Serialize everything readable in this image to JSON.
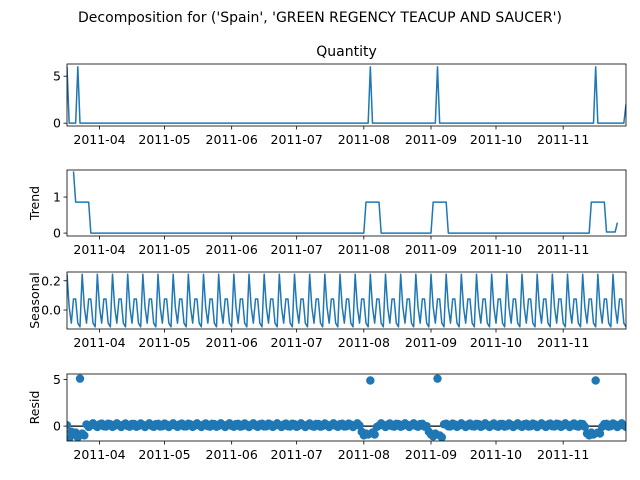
{
  "suptitle": "Decomposition for ('Spain', 'GREEN REGENCY TEACUP AND SAUCER')",
  "x_tick_labels": [
    "2011-04",
    "2011-05",
    "2011-06",
    "2011-07",
    "2011-08",
    "2011-09",
    "2011-10",
    "2011-11"
  ],
  "colors": {
    "series": "#1f77b4"
  },
  "chart_data": [
    {
      "type": "line",
      "title": "Quantity",
      "ylabel": "",
      "x_range": [
        "2011-03-17",
        "2011-11-30"
      ],
      "ylim": [
        -0.3,
        6.3
      ],
      "yticks": [
        0,
        5
      ],
      "series": [
        {
          "x": [
            "2011-03-17",
            "2011-03-18",
            "2011-03-21",
            "2011-03-22",
            "2011-03-23",
            "2011-03-24",
            "2011-08-02",
            "2011-08-03",
            "2011-08-04",
            "2011-08-05",
            "2011-09-02",
            "2011-09-03",
            "2011-09-04",
            "2011-09-05",
            "2011-11-14",
            "2011-11-15",
            "2011-11-16",
            "2011-11-17",
            "2011-11-28",
            "2011-11-29",
            "2011-11-30"
          ],
          "values": [
            6,
            0,
            0,
            6,
            0,
            0,
            0,
            0,
            6,
            0,
            0,
            0,
            6,
            0,
            0,
            0,
            6,
            0,
            0,
            0,
            2
          ]
        }
      ]
    },
    {
      "type": "line",
      "title": "",
      "ylabel": "Trend",
      "x_range": [
        "2011-03-17",
        "2011-11-30"
      ],
      "ylim": [
        -0.08,
        1.75
      ],
      "yticks": [
        0,
        1
      ],
      "series": [
        {
          "x": [
            "2011-03-20",
            "2011-03-21",
            "2011-03-27",
            "2011-03-28",
            "2011-08-01",
            "2011-08-02",
            "2011-08-08",
            "2011-08-09",
            "2011-09-01",
            "2011-09-02",
            "2011-09-08",
            "2011-09-09",
            "2011-11-13",
            "2011-11-14",
            "2011-11-20",
            "2011-11-21",
            "2011-11-24",
            "2011-11-25",
            "2011-11-26"
          ],
          "values": [
            1.71,
            0.86,
            0.86,
            0,
            0,
            0.86,
            0.86,
            0,
            0,
            0.86,
            0.86,
            0,
            0,
            0.86,
            0.86,
            0.03,
            0.03,
            0.03,
            0.29
          ]
        }
      ]
    },
    {
      "type": "line",
      "title": "",
      "ylabel": "Seasonal",
      "x_range": [
        "2011-03-17",
        "2011-11-30"
      ],
      "ylim": [
        -0.13,
        0.26
      ],
      "yticks": [
        0.0,
        0.2
      ],
      "ytick_labels": [
        "0.0",
        "0.2"
      ],
      "weekly_pattern": [
        0.245,
        0.02,
        -0.09,
        0.075,
        0.075,
        -0.09,
        -0.115
      ],
      "pattern_start": "2011-03-17"
    },
    {
      "type": "scatter",
      "title": "",
      "ylabel": "Resid",
      "x_range": [
        "2011-03-17",
        "2011-11-30"
      ],
      "ylim": [
        -1.6,
        5.6
      ],
      "yticks": [
        0,
        5
      ],
      "zero_line": true,
      "outliers": {
        "x": [
          "2011-03-23",
          "2011-08-04",
          "2011-09-04",
          "2011-11-16"
        ],
        "values": [
          5.1,
          4.9,
          5.1,
          4.9
        ]
      },
      "residual_dips": {
        "x": [
          "2011-03-18",
          "2011-03-19",
          "2011-03-20",
          "2011-03-21",
          "2011-03-22",
          "2011-03-24",
          "2011-03-25",
          "2011-07-31",
          "2011-08-01",
          "2011-08-02",
          "2011-08-03",
          "2011-08-05",
          "2011-08-06",
          "2011-08-31",
          "2011-09-01",
          "2011-09-02",
          "2011-09-03",
          "2011-09-05",
          "2011-09-06",
          "2011-11-12",
          "2011-11-13",
          "2011-11-14",
          "2011-11-15",
          "2011-11-17",
          "2011-11-18"
        ],
        "values": [
          -1.3,
          -0.6,
          -0.9,
          -0.7,
          -1.2,
          -0.8,
          -1.0,
          -0.6,
          -1.0,
          -0.8,
          -0.9,
          -0.7,
          -0.9,
          -0.6,
          -0.9,
          -1.1,
          -0.8,
          -1.0,
          -1.2,
          -0.8,
          -1.0,
          -0.7,
          -0.9,
          -0.7,
          -0.8
        ]
      },
      "typical_band": [
        -0.1,
        0.3
      ]
    }
  ]
}
